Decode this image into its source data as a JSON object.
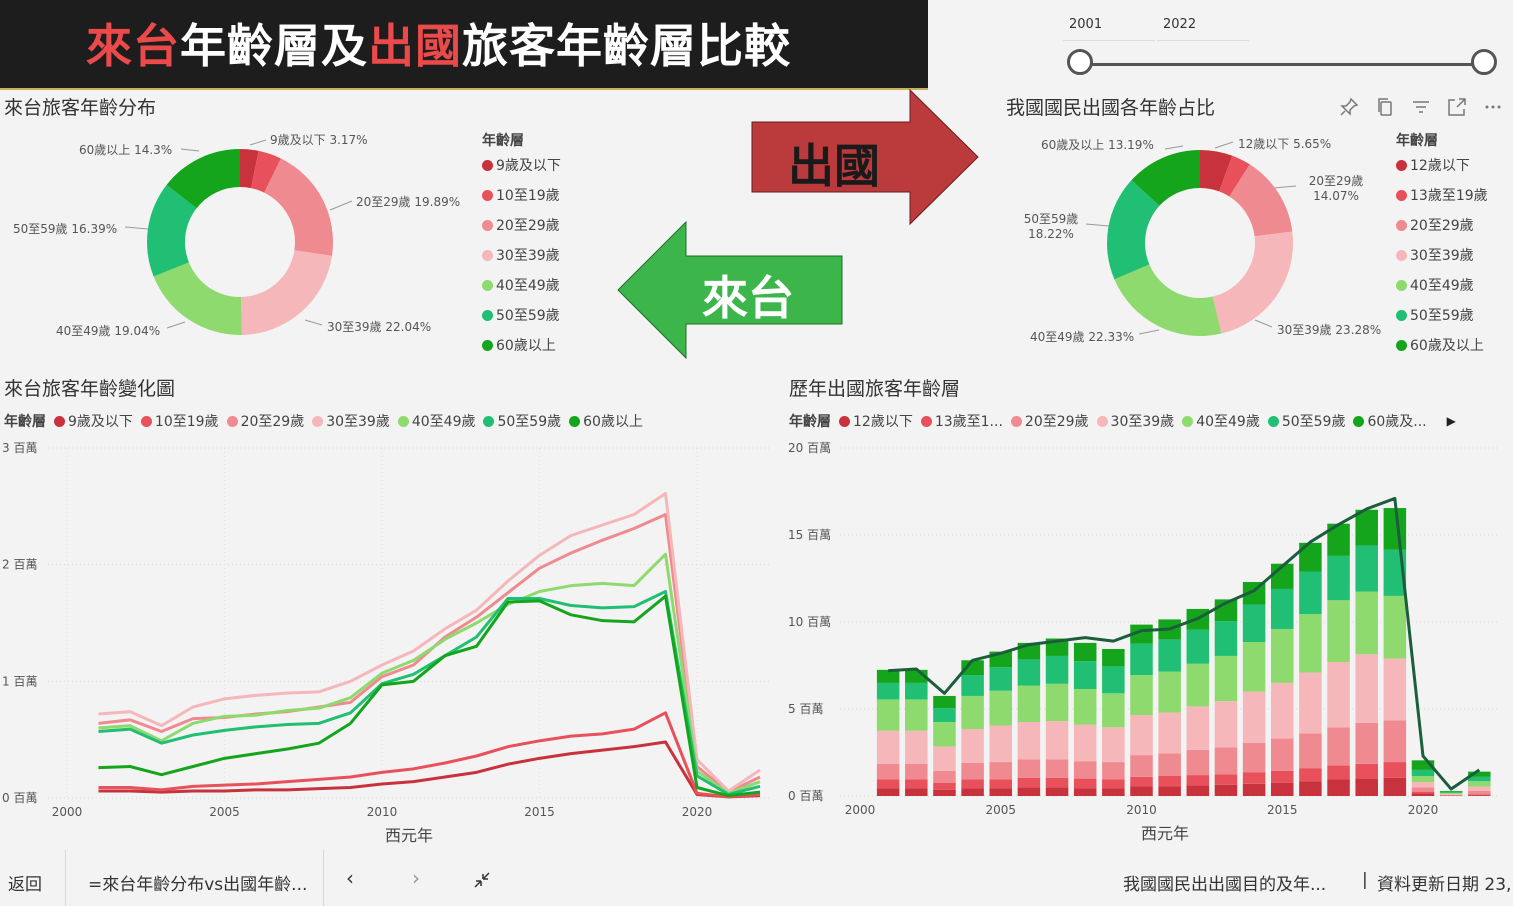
{
  "banner": {
    "part1": "來台",
    "part2": "年齡層及",
    "part3": "出國",
    "part4": "旅客年齡層比較"
  },
  "slider": {
    "start": "2001",
    "end": "2022"
  },
  "arrows": {
    "outbound": "出國",
    "inbound": "來台"
  },
  "visual_icons": [
    "pin-icon",
    "copy-icon",
    "filter-icon",
    "expand-icon",
    "more-icon"
  ],
  "colors": {
    "c1": "#c8323c",
    "c2": "#e8515b",
    "c3": "#ef8a90",
    "c4": "#f5b7b9",
    "c5": "#8fda6e",
    "c6": "#21bf73",
    "c7": "#14a51c",
    "dark_line": "#1b5e3b"
  },
  "legend_title": "年齡層",
  "chart_data": [
    {
      "type": "donut",
      "title": "來台旅客年齡分布",
      "legend": [
        "9歲及以下",
        "10至19歲",
        "20至29歲",
        "30至39歲",
        "40至49歲",
        "50至59歲",
        "60歲以上"
      ],
      "values": [
        3.17,
        4.0,
        19.89,
        22.04,
        19.04,
        16.39,
        14.3
      ],
      "labels": [
        "9歲及以下 3.17%",
        "",
        "20至29歲 19.89%",
        "30至39歲 22.04%",
        "40至49歲 19.04%",
        "50至59歲 16.39%",
        "60歲以上 14.3%"
      ]
    },
    {
      "type": "donut",
      "title": "我國國民出國各年齡占比",
      "legend": [
        "12歲以下",
        "13歲至19歲",
        "20至29歲",
        "30至39歲",
        "40至49歲",
        "50至59歲",
        "60歲及以上"
      ],
      "values": [
        5.65,
        3.34,
        14.07,
        23.28,
        22.33,
        18.22,
        13.19
      ],
      "labels": [
        "12歲以下 5.65%",
        "",
        "20至29歲 14.07%",
        "30至39歲 23.28%",
        "40至49歲 22.33%",
        "50至59歲 18.22%",
        "60歲及以上 13.19%"
      ]
    },
    {
      "type": "line",
      "title": "來台旅客年齡變化圖",
      "legend_title": "年齡層",
      "xlabel": "西元年",
      "x": [
        2001,
        2002,
        2003,
        2004,
        2005,
        2006,
        2007,
        2008,
        2009,
        2010,
        2011,
        2012,
        2013,
        2014,
        2015,
        2016,
        2017,
        2018,
        2019,
        2020,
        2021,
        2022
      ],
      "x_ticks": [
        "2000",
        "2005",
        "2010",
        "2015",
        "2020"
      ],
      "y_ticks": [
        "0 百萬",
        "1 百萬",
        "2 百萬",
        "3 百萬"
      ],
      "ylim": [
        0,
        3
      ],
      "series": [
        {
          "name": "9歲及以下",
          "values": [
            0.06,
            0.06,
            0.05,
            0.06,
            0.06,
            0.07,
            0.07,
            0.08,
            0.09,
            0.12,
            0.14,
            0.18,
            0.22,
            0.29,
            0.34,
            0.38,
            0.41,
            0.44,
            0.48,
            0.03,
            0.01,
            0.02
          ]
        },
        {
          "name": "10至19歲",
          "values": [
            0.09,
            0.09,
            0.07,
            0.1,
            0.11,
            0.12,
            0.14,
            0.16,
            0.18,
            0.22,
            0.25,
            0.3,
            0.36,
            0.44,
            0.49,
            0.53,
            0.55,
            0.59,
            0.73,
            0.04,
            0.01,
            0.03
          ]
        },
        {
          "name": "20至29歲",
          "values": [
            0.64,
            0.67,
            0.57,
            0.68,
            0.69,
            0.72,
            0.74,
            0.78,
            0.82,
            1.04,
            1.14,
            1.38,
            1.55,
            1.76,
            1.97,
            2.1,
            2.21,
            2.31,
            2.43,
            0.27,
            0.05,
            0.18
          ]
        },
        {
          "name": "30至39歲",
          "values": [
            0.72,
            0.74,
            0.62,
            0.78,
            0.85,
            0.88,
            0.9,
            0.91,
            1.0,
            1.14,
            1.26,
            1.45,
            1.61,
            1.86,
            2.08,
            2.25,
            2.34,
            2.43,
            2.61,
            0.33,
            0.06,
            0.24
          ]
        },
        {
          "name": "40至49歲",
          "values": [
            0.6,
            0.62,
            0.49,
            0.64,
            0.7,
            0.71,
            0.75,
            0.77,
            0.86,
            1.07,
            1.18,
            1.36,
            1.5,
            1.66,
            1.77,
            1.82,
            1.84,
            1.82,
            2.09,
            0.23,
            0.04,
            0.14
          ]
        },
        {
          "name": "50至59歲",
          "values": [
            0.57,
            0.59,
            0.47,
            0.54,
            0.58,
            0.61,
            0.63,
            0.64,
            0.73,
            0.98,
            1.06,
            1.22,
            1.38,
            1.71,
            1.71,
            1.65,
            1.63,
            1.64,
            1.77,
            0.19,
            0.03,
            0.1
          ]
        },
        {
          "name": "60歲以上",
          "values": [
            0.26,
            0.27,
            0.2,
            0.27,
            0.34,
            0.38,
            0.42,
            0.47,
            0.64,
            0.97,
            1.0,
            1.22,
            1.3,
            1.68,
            1.69,
            1.57,
            1.52,
            1.51,
            1.73,
            0.09,
            0.02,
            0.05
          ]
        }
      ]
    },
    {
      "type": "bar",
      "stacked": true,
      "title": "歷年出國旅客年齡層",
      "legend_title": "年齡層",
      "legend": [
        "12歲以下",
        "13歲至1...",
        "20至29歲",
        "30至39歲",
        "40至49歲",
        "50至59歲",
        "60歲及..."
      ],
      "xlabel": "西元年",
      "x": [
        2001,
        2002,
        2003,
        2004,
        2005,
        2006,
        2007,
        2008,
        2009,
        2010,
        2011,
        2012,
        2013,
        2014,
        2015,
        2016,
        2017,
        2018,
        2019,
        2020,
        2021,
        2022
      ],
      "x_ticks": [
        "2000",
        "2005",
        "2010",
        "2015",
        "2020"
      ],
      "y_ticks": [
        "0 百萬",
        "5 百萬",
        "10 百萬",
        "15 百萬",
        "20 百萬"
      ],
      "ylim": [
        0,
        20
      ],
      "series": [
        {
          "name": "12歲以下",
          "values": [
            0.45,
            0.45,
            0.35,
            0.45,
            0.45,
            0.5,
            0.5,
            0.45,
            0.45,
            0.55,
            0.55,
            0.6,
            0.65,
            0.7,
            0.75,
            0.85,
            0.95,
            1.0,
            1.05,
            0.15,
            0.02,
            0.05
          ]
        },
        {
          "name": "13歲至19歲",
          "values": [
            0.5,
            0.5,
            0.4,
            0.5,
            0.5,
            0.55,
            0.55,
            0.55,
            0.5,
            0.55,
            0.6,
            0.6,
            0.6,
            0.65,
            0.7,
            0.75,
            0.8,
            0.85,
            0.9,
            0.1,
            0.02,
            0.05
          ]
        },
        {
          "name": "20至29歲",
          "values": [
            0.9,
            0.9,
            0.7,
            0.95,
            1.0,
            1.05,
            1.05,
            1.0,
            1.0,
            1.25,
            1.3,
            1.45,
            1.55,
            1.7,
            1.85,
            2.0,
            2.2,
            2.35,
            2.4,
            0.25,
            0.03,
            0.2
          ]
        },
        {
          "name": "30至39歲",
          "values": [
            1.9,
            1.9,
            1.4,
            1.95,
            2.1,
            2.15,
            2.2,
            2.1,
            2.0,
            2.3,
            2.35,
            2.5,
            2.65,
            2.95,
            3.2,
            3.5,
            3.75,
            3.95,
            3.55,
            0.3,
            0.05,
            0.25
          ]
        },
        {
          "name": "40至49歲",
          "values": [
            1.8,
            1.8,
            1.4,
            1.9,
            2.0,
            2.1,
            2.15,
            2.05,
            1.95,
            2.3,
            2.35,
            2.45,
            2.6,
            2.85,
            3.1,
            3.35,
            3.55,
            3.6,
            3.6,
            0.35,
            0.05,
            0.3
          ]
        },
        {
          "name": "50至59歲",
          "values": [
            0.95,
            0.95,
            0.8,
            1.2,
            1.35,
            1.5,
            1.6,
            1.6,
            1.55,
            1.8,
            1.85,
            1.95,
            2.0,
            2.15,
            2.3,
            2.45,
            2.55,
            2.65,
            2.65,
            0.35,
            0.05,
            0.25
          ]
        },
        {
          "name": "60歲及以上",
          "values": [
            0.75,
            0.75,
            0.7,
            0.85,
            0.9,
            0.95,
            1.0,
            1.05,
            1.0,
            1.1,
            1.15,
            1.2,
            1.25,
            1.3,
            1.45,
            1.65,
            1.85,
            2.05,
            2.4,
            0.55,
            0.06,
            0.3
          ]
        }
      ],
      "total_line": [
        7.2,
        7.3,
        5.9,
        7.8,
        8.2,
        8.7,
        8.9,
        9.1,
        8.9,
        9.5,
        9.6,
        10.2,
        11.1,
        11.8,
        13.2,
        14.6,
        15.6,
        16.5,
        17.1,
        2.3,
        0.4,
        1.5
      ]
    }
  ],
  "bottom": {
    "back": "返回",
    "page": "=來台年齡分布vs出國年齡...",
    "next_page": "我國國民出出國目的及年...",
    "update": "資料更新日期 23,"
  }
}
